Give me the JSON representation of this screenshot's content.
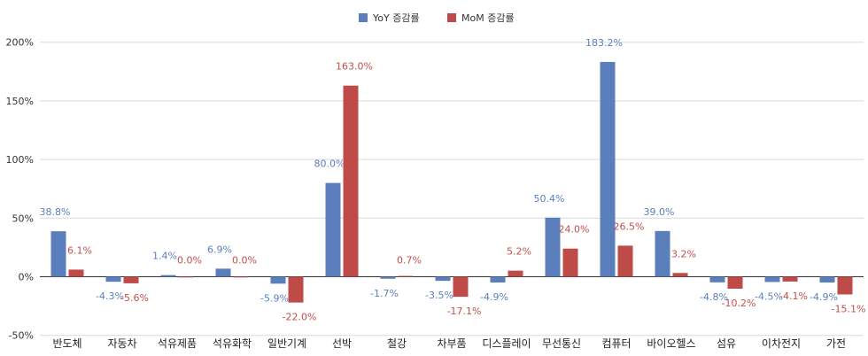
{
  "chart_data": {
    "type": "bar",
    "title": "",
    "xlabel": "",
    "ylabel": "",
    "ylim": [
      -50,
      200
    ],
    "y_ticks": [
      "-50%",
      "0%",
      "50%",
      "100%",
      "150%",
      "200%"
    ],
    "y_tick_values": [
      -50,
      0,
      50,
      100,
      150,
      200
    ],
    "grid": true,
    "legend_position": "top-center",
    "categories": [
      "반도체",
      "자동차",
      "석유제품",
      "석유화학",
      "일반기계",
      "선박",
      "철강",
      "차부품",
      "디스플레이",
      "무선통신",
      "컴퓨터",
      "바이오헬스",
      "섬유",
      "이차전지",
      "가전"
    ],
    "series": [
      {
        "name": "YoY 증감률",
        "color": "#5B7FBD",
        "label_color": "#5B7FBD",
        "values": [
          38.8,
          -4.3,
          1.4,
          6.9,
          -5.9,
          80.0,
          -1.7,
          -3.5,
          -4.9,
          50.4,
          183.2,
          39.0,
          -4.8,
          -4.5,
          -4.9
        ],
        "labels": [
          "38.8%",
          "-4.3%",
          "1.4%",
          "6.9%",
          "-5.9%",
          "80.0%",
          "-1.7%",
          "-3.5%",
          "-4.9%",
          "50.4%",
          "183.2%",
          "39.0%",
          "-4.8%",
          "-4.5%",
          "-4.9%"
        ]
      },
      {
        "name": "MoM 증감률",
        "color": "#BE4B48",
        "label_color": "#C0504D",
        "values": [
          6.1,
          -5.6,
          0.0,
          0.0,
          -22.0,
          163.0,
          0.7,
          -17.1,
          5.2,
          24.0,
          26.5,
          3.2,
          -10.2,
          -4.1,
          -15.1
        ],
        "labels": [
          "6.1%",
          "-5.6%",
          "0.0%",
          "0.0%",
          "-22.0%",
          "163.0%",
          "0.7%",
          "-17.1%",
          "5.2%",
          "24.0%",
          "26.5%",
          "3.2%",
          "-10.2%",
          "-4.1%",
          "-15.1%"
        ]
      }
    ]
  }
}
